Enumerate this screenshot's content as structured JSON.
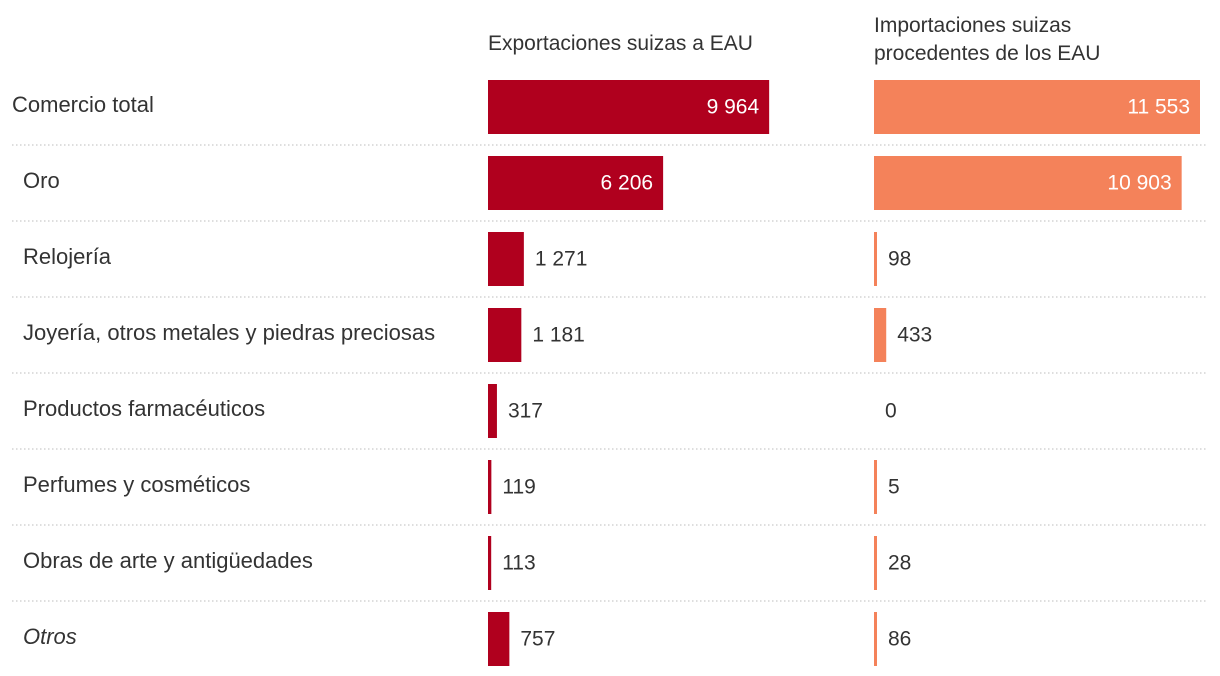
{
  "headers": {
    "exports": "Exportaciones suizas a EAU",
    "imports": "Importaciones suizas\nprocedentes de los EAU"
  },
  "chart_data": {
    "type": "bar",
    "orientation": "horizontal",
    "categories": [
      "Comercio total",
      "Oro",
      "Relojería",
      "Joyería, otros metales y piedras preciosas",
      "Productos farmacéuticos",
      "Perfumes y cosméticos",
      "Obras de arte y antigüedades",
      "Otros"
    ],
    "series": [
      {
        "name": "Exportaciones suizas a EAU",
        "values": [
          9964,
          6206,
          1271,
          1181,
          317,
          119,
          113,
          757
        ],
        "labels": [
          "9 964",
          "6 206",
          "1 271",
          "1 181",
          "317",
          "119",
          "113",
          "757"
        ],
        "color": "#b0001e"
      },
      {
        "name": "Importaciones suizas procedentes de los EAU",
        "values": [
          11553,
          10903,
          98,
          433,
          0,
          5,
          28,
          86
        ],
        "labels": [
          "11 553",
          "10 903",
          "98",
          "433",
          "0",
          "5",
          "28",
          "86"
        ],
        "color": "#f4825a"
      }
    ],
    "italic_categories": [
      "Otros"
    ],
    "emphasized_categories": [
      "Comercio total"
    ],
    "grid": "dotted row separators",
    "xlim": [
      0,
      11553
    ]
  }
}
